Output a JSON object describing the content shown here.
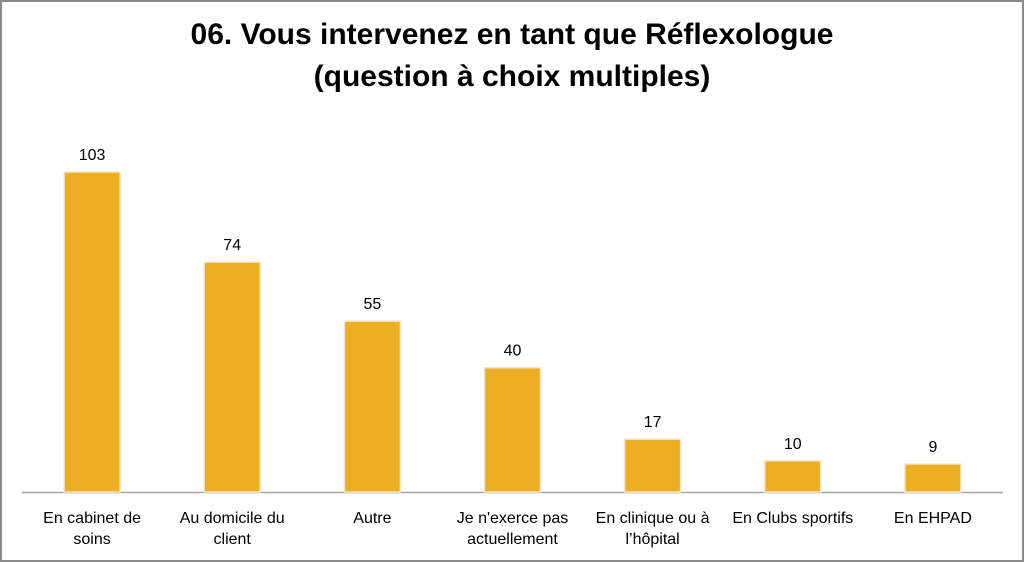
{
  "chart_data": {
    "type": "bar",
    "title_lines": [
      "06. Vous intervenez en tant que Réflexologue",
      "(question à choix multiples)"
    ],
    "categories": [
      [
        "En cabinet de",
        "soins"
      ],
      [
        "Au domicile du",
        "client"
      ],
      [
        "Autre"
      ],
      [
        "Je n'exerce pas",
        "actuellement"
      ],
      [
        "En clinique ou à",
        "l’hôpital"
      ],
      [
        "En Clubs sportifs"
      ],
      [
        "En EHPAD"
      ]
    ],
    "values": [
      103,
      74,
      55,
      40,
      17,
      10,
      9
    ],
    "data_labels": [
      "103",
      "74",
      "55",
      "40",
      "17",
      "10",
      "9"
    ],
    "bar_color": "#EDAE23",
    "axis_color": "#A6A6A6",
    "gridlines": false,
    "legend": "none",
    "ylim": [
      0,
      103
    ]
  }
}
